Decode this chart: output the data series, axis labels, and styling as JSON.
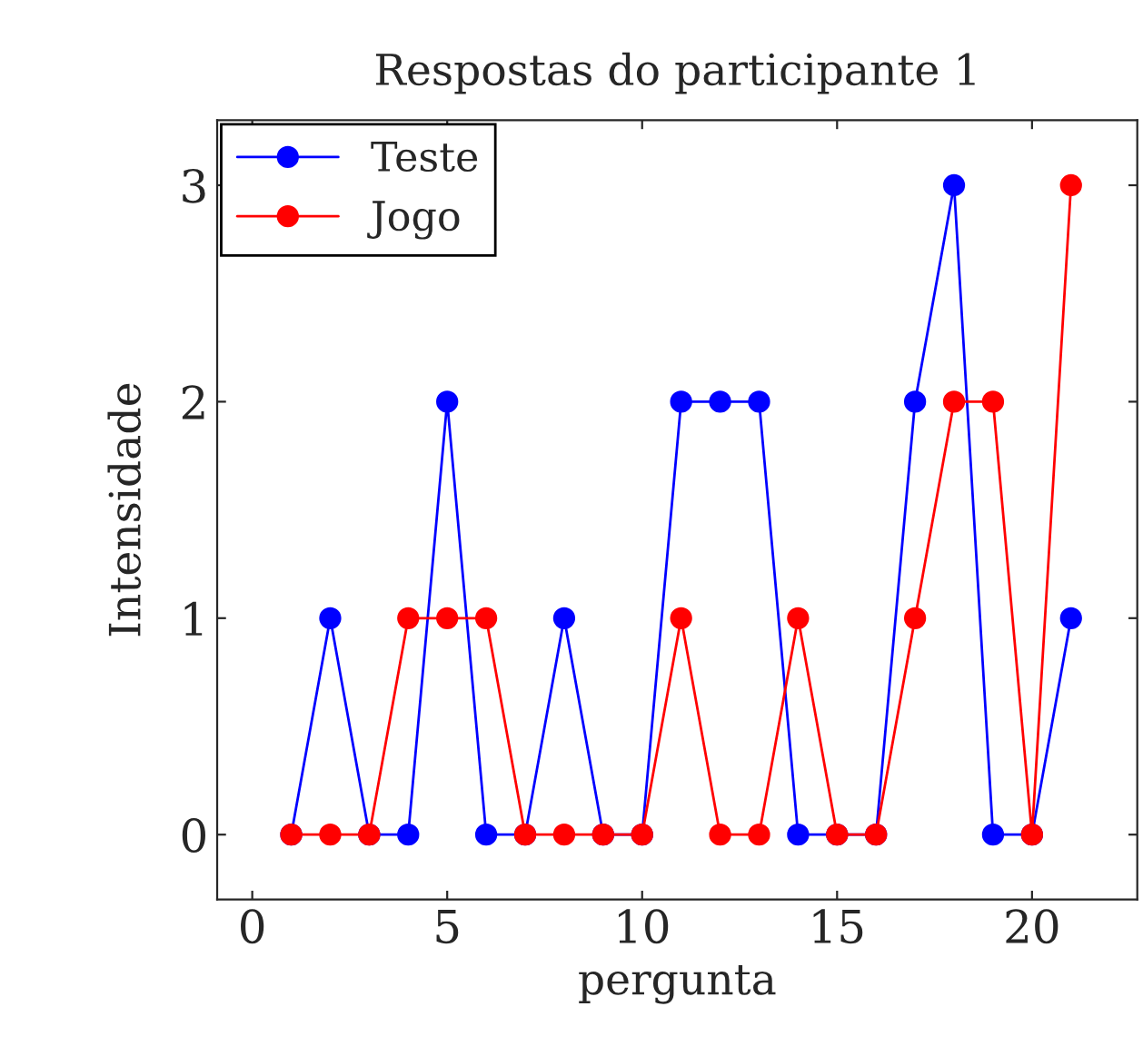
{
  "chart_data": {
    "type": "line",
    "title": "Respostas do participante 1",
    "xlabel": "pergunta",
    "ylabel": "Intensidade",
    "x": [
      1,
      2,
      3,
      4,
      5,
      6,
      7,
      8,
      9,
      10,
      11,
      12,
      13,
      14,
      15,
      16,
      17,
      18,
      19,
      20,
      21
    ],
    "series": [
      {
        "name": "Teste",
        "color": "#0000ff",
        "values": [
          0,
          1,
          0,
          0,
          2,
          0,
          0,
          1,
          0,
          0,
          2,
          2,
          2,
          0,
          0,
          0,
          2,
          3,
          0,
          0,
          1
        ]
      },
      {
        "name": "Jogo",
        "color": "#ff0000",
        "values": [
          0,
          0,
          0,
          1,
          1,
          1,
          0,
          0,
          0,
          0,
          1,
          0,
          0,
          1,
          0,
          0,
          1,
          2,
          2,
          0,
          3
        ]
      }
    ],
    "xlim": [
      -0.9,
      22.7
    ],
    "xticks": [
      0,
      5,
      10,
      15,
      20
    ],
    "ylim": [
      -0.3,
      3.3
    ],
    "yticks": [
      0,
      1,
      2,
      3
    ],
    "marker": "circle",
    "line_style": "solid",
    "grid": false,
    "legend": "top left"
  }
}
